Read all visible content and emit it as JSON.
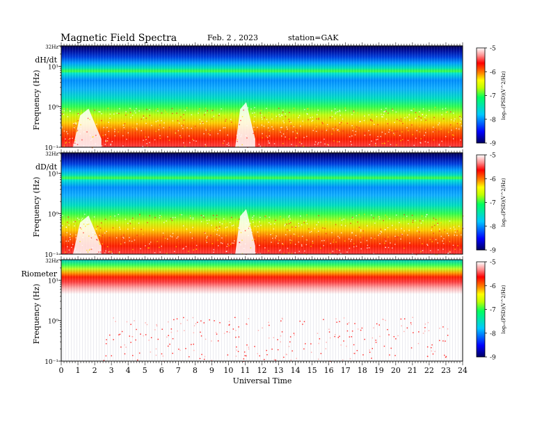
{
  "header": {
    "title": "Magnetic Field Spectra",
    "date": "Feb. 2 , 2023",
    "station": "station=GAK"
  },
  "chart_data": [
    {
      "type": "heatmap",
      "panel_label": "dH/dt",
      "ylabel": "Frequency (Hz)",
      "ytick_labels": [
        "32Hz",
        "10¹",
        "10⁰",
        "10⁻¹"
      ],
      "yscale": "log",
      "ylim": [
        0.1,
        32
      ],
      "xlim": [
        0,
        24
      ],
      "colorbar": {
        "label": "log₁₀(PSD)(V^2/Hz)",
        "ticks": [
          "-5",
          "-6",
          "-7",
          "-8",
          "-9"
        ],
        "range": [
          -9,
          -5
        ]
      },
      "features": [
        "strong broadband power below 1 Hz near 0.7-2.5 UT",
        "broadband burst near 10.5-11.5 UT",
        "persistent narrow band near 8 Hz"
      ]
    },
    {
      "type": "heatmap",
      "panel_label": "dD/dt",
      "ylabel": "Frequency (Hz)",
      "ytick_labels": [
        "32Hz",
        "10¹",
        "10⁰",
        "10⁻¹"
      ],
      "yscale": "log",
      "ylim": [
        0.1,
        32
      ],
      "xlim": [
        0,
        24
      ],
      "colorbar": {
        "label": "log₁₀(PSD)(V^2/Hz)",
        "ticks": [
          "-5",
          "-6",
          "-7",
          "-8",
          "-9"
        ],
        "range": [
          -9,
          -5
        ]
      },
      "features": [
        "strong broadband power below 1 Hz near 0.7-2.5 UT",
        "broadband burst near 10.5-11.5 UT",
        "persistent narrow band near 8 Hz"
      ]
    },
    {
      "type": "heatmap",
      "panel_label": "Riometer",
      "ylabel": "Frequency (Hz)",
      "ytick_labels": [
        "32Hz",
        "10¹",
        "10⁰",
        "10⁻¹"
      ],
      "yscale": "log",
      "ylim": [
        0.1,
        32
      ],
      "xlim": [
        0,
        24
      ],
      "colorbar": {
        "label": "log₁₀(PSD)(V^2/Hz)",
        "ticks": [
          "-5",
          "-6",
          "-7",
          "-8",
          "-9"
        ],
        "range": [
          -9,
          -5
        ]
      },
      "features": [
        "power concentrated above ~10 Hz",
        "mostly white (saturated) below ~8 Hz with sparse red speckle"
      ]
    }
  ],
  "xaxis": {
    "label": "Universal Time",
    "ticks": [
      "0",
      "1",
      "2",
      "3",
      "4",
      "5",
      "6",
      "7",
      "8",
      "9",
      "10",
      "11",
      "12",
      "13",
      "14",
      "15",
      "16",
      "17",
      "18",
      "19",
      "20",
      "21",
      "22",
      "23",
      "24"
    ]
  }
}
